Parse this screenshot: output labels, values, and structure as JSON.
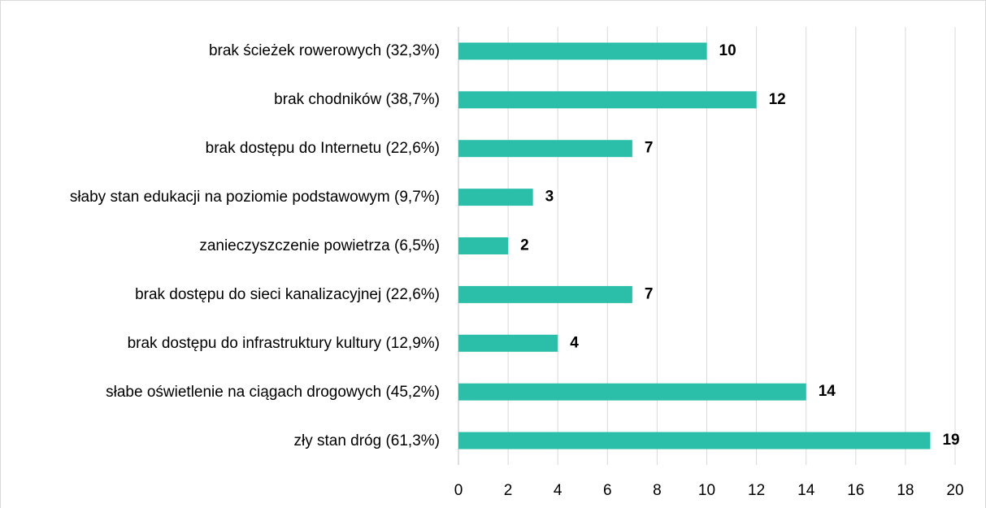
{
  "chart_data": {
    "type": "bar",
    "orientation": "horizontal",
    "categories": [
      "brak ścieżek rowerowych (32,3%)",
      "brak chodników (38,7%)",
      "brak dostępu do Internetu (22,6%)",
      "słaby stan edukacji na poziomie podstawowym (9,7%)",
      "zanieczyszczenie powietrza (6,5%)",
      "brak dostępu do sieci kanalizacyjnej (22,6%)",
      "brak dostępu do infrastruktury kultury (12,9%)",
      "słabe oświetlenie na ciągach drogowych (45,2%)",
      "zły stan dróg (61,3%)"
    ],
    "values": [
      10,
      12,
      7,
      3,
      2,
      7,
      4,
      14,
      19
    ],
    "color": "#2bbfaa",
    "xlim": [
      0,
      20
    ],
    "xticks": [
      0,
      2,
      4,
      6,
      8,
      10,
      12,
      14,
      16,
      18,
      20
    ],
    "grid": true
  }
}
